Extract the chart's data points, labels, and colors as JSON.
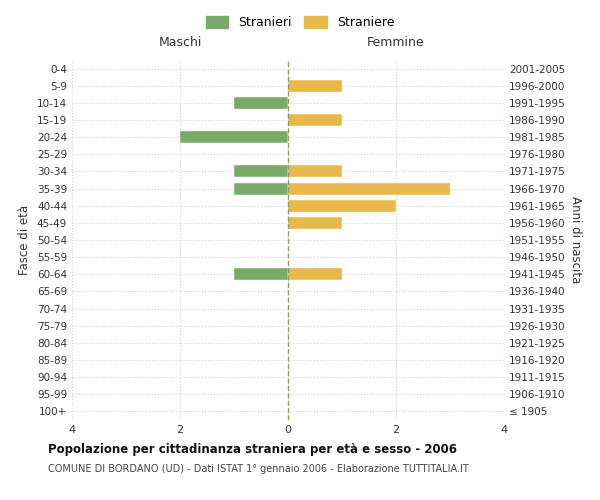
{
  "age_groups": [
    "100+",
    "95-99",
    "90-94",
    "85-89",
    "80-84",
    "75-79",
    "70-74",
    "65-69",
    "60-64",
    "55-59",
    "50-54",
    "45-49",
    "40-44",
    "35-39",
    "30-34",
    "25-29",
    "20-24",
    "15-19",
    "10-14",
    "5-9",
    "0-4"
  ],
  "birth_years": [
    "≤ 1905",
    "1906-1910",
    "1911-1915",
    "1916-1920",
    "1921-1925",
    "1926-1930",
    "1931-1935",
    "1936-1940",
    "1941-1945",
    "1946-1950",
    "1951-1955",
    "1956-1960",
    "1961-1965",
    "1966-1970",
    "1971-1975",
    "1976-1980",
    "1981-1985",
    "1986-1990",
    "1991-1995",
    "1996-2000",
    "2001-2005"
  ],
  "stranieri": [
    0,
    0,
    0,
    0,
    0,
    0,
    0,
    0,
    1,
    0,
    0,
    0,
    0,
    1,
    1,
    0,
    2,
    0,
    1,
    0,
    0
  ],
  "straniere": [
    0,
    0,
    0,
    0,
    0,
    0,
    0,
    0,
    1,
    0,
    0,
    1,
    2,
    3,
    1,
    0,
    0,
    1,
    0,
    1,
    0
  ],
  "color_stranieri": "#7aaa6a",
  "color_straniere": "#e8b84b",
  "title": "Popolazione per cittadinanza straniera per età e sesso - 2006",
  "subtitle": "COMUNE DI BORDANO (UD) - Dati ISTAT 1° gennaio 2006 - Elaborazione TUTTITALIA.IT",
  "xlabel_left": "Maschi",
  "xlabel_right": "Femmine",
  "ylabel_left": "Fasce di età",
  "ylabel_right": "Anni di nascita",
  "legend_stranieri": "Stranieri",
  "legend_straniere": "Straniere",
  "xlim": 4,
  "background_color": "#ffffff",
  "grid_color": "#d0d0d0"
}
